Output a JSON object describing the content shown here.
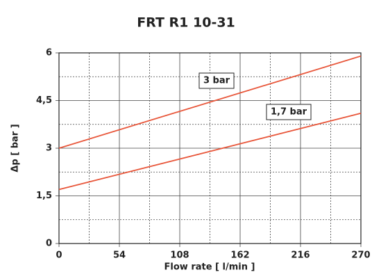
{
  "chart_data": {
    "type": "line",
    "title": "FRT R1 10-31",
    "x_label": "Flow rate [ l/min ]",
    "y_label": "Δp [ bar ]",
    "x": [
      0,
      270
    ],
    "series": [
      {
        "name": "3 bar",
        "color": "#e8563a",
        "values": [
          3,
          5.9
        ]
      },
      {
        "name": "1,7 bar",
        "color": "#e8563a",
        "values": [
          1.7,
          4.1
        ]
      }
    ],
    "xlim": [
      0,
      270
    ],
    "xticks": [
      0,
      54,
      108,
      162,
      216,
      270
    ],
    "ylim": [
      0,
      6
    ],
    "yticks": [
      0,
      {
        "value": 1.5,
        "label": "1,5"
      },
      3,
      {
        "value": 4.5,
        "label": "4,5"
      },
      6
    ],
    "grid": true
  }
}
